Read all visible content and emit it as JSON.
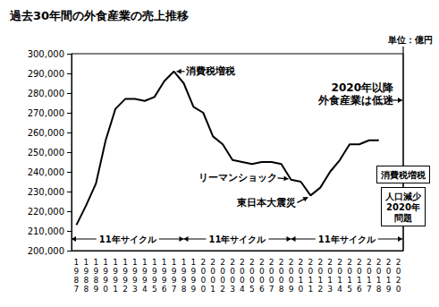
{
  "chart_data": {
    "type": "line",
    "title": "過去30年間の外食産業の売上推移",
    "unit": "単位：億円",
    "categories": [
      "1987",
      "1988",
      "1989",
      "1990",
      "1991",
      "1992",
      "1993",
      "1994",
      "1995",
      "1996",
      "1997",
      "1998",
      "1999",
      "2000",
      "2001",
      "2002",
      "2003",
      "2004",
      "2005",
      "2006",
      "2007",
      "2008",
      "2009",
      "2010",
      "2011",
      "2012",
      "2013",
      "2014",
      "2015",
      "2016",
      "2017",
      "2018",
      "2019",
      "2020"
    ],
    "values": [
      213000,
      223000,
      234000,
      256000,
      272000,
      277000,
      277000,
      276000,
      278000,
      286000,
      291000,
      285000,
      273000,
      270000,
      258000,
      254000,
      246000,
      245000,
      244000,
      245000,
      245000,
      244000,
      236000,
      235000,
      228000,
      232000,
      240000,
      246000,
      254000,
      254000,
      256000,
      256000,
      null,
      null
    ],
    "color": "#000000",
    "marker": "none",
    "grid": false,
    "ylim": [
      200000,
      300000
    ],
    "yticks": [
      {
        "value": 200000,
        "label": "200,000"
      },
      {
        "value": 210000,
        "label": "210,000"
      },
      {
        "value": 220000,
        "label": "220,000"
      },
      {
        "value": 230000,
        "label": "230,000"
      },
      {
        "value": 240000,
        "label": "240,000"
      },
      {
        "value": 250000,
        "label": "250,000"
      },
      {
        "value": 260000,
        "label": "260,000"
      },
      {
        "value": 270000,
        "label": "270,000"
      },
      {
        "value": 280000,
        "label": "280,000"
      },
      {
        "value": 290000,
        "label": "290,000"
      },
      {
        "value": 300000,
        "label": "300,000"
      }
    ],
    "annotations": [
      {
        "text": "消費税増税",
        "x": "1997"
      },
      {
        "text": "リーマンショック",
        "x": "2009"
      },
      {
        "text": "東日本大震災",
        "x": "2011"
      },
      {
        "text": "2020年以降\n外食産業は低迷",
        "x": "2020"
      }
    ],
    "boxes": [
      "消費税増税",
      "人口減少\n2020年\n問題"
    ],
    "cycles": [
      {
        "label": "11年サイクル",
        "start": "1987",
        "end": "1998"
      },
      {
        "label": "11年サイクル",
        "start": "1998",
        "end": "2009"
      },
      {
        "label": "11年サイクル",
        "start": "2009",
        "end": "2020"
      }
    ]
  }
}
